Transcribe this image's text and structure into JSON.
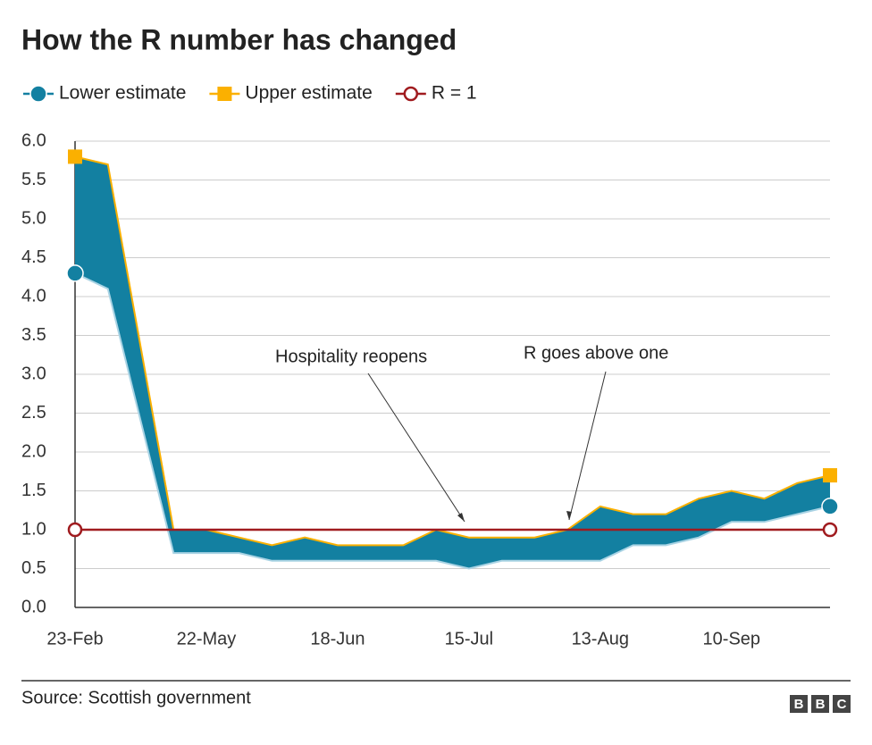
{
  "chart_data": {
    "type": "area-band",
    "title": "How the R number has changed",
    "categories": [
      "23-Feb",
      null,
      null,
      null,
      "22-May",
      null,
      null,
      null,
      "18-Jun",
      null,
      null,
      null,
      "15-Jul",
      null,
      null,
      null,
      "13-Aug",
      null,
      null,
      null,
      "10-Sep",
      null,
      null,
      null
    ],
    "series": [
      {
        "name": "Lower estimate",
        "color": "#1380a1",
        "marker": "circle",
        "values": [
          4.3,
          4.1,
          2.4,
          0.7,
          0.7,
          0.7,
          0.6,
          0.6,
          0.6,
          0.6,
          0.6,
          0.6,
          0.5,
          0.6,
          0.6,
          0.6,
          0.6,
          0.8,
          0.8,
          0.9,
          1.1,
          1.1,
          1.2,
          1.3
        ]
      },
      {
        "name": "Upper estimate",
        "color": "#fbb000",
        "marker": "square",
        "values": [
          5.8,
          5.7,
          3.35,
          1.0,
          1.0,
          0.9,
          0.8,
          0.9,
          0.8,
          0.8,
          0.8,
          1.0,
          0.9,
          0.9,
          0.9,
          1.0,
          1.3,
          1.2,
          1.2,
          1.4,
          1.5,
          1.4,
          1.6,
          1.7
        ]
      },
      {
        "name": "R = 1",
        "color": "#a01b1f",
        "marker": "hollow-circle",
        "values": [
          1,
          1,
          1,
          1,
          1,
          1,
          1,
          1,
          1,
          1,
          1,
          1,
          1,
          1,
          1,
          1,
          1,
          1,
          1,
          1,
          1,
          1,
          1,
          1
        ]
      }
    ],
    "band_color": "#1380a1",
    "ylim": [
      0,
      6
    ],
    "yticks": [
      {
        "value": 0,
        "label": "0.0"
      },
      0.5,
      {
        "value": 1,
        "label": "1.0"
      },
      1.5,
      {
        "value": 2,
        "label": "2.0"
      },
      2.5,
      {
        "value": 3,
        "label": "3.0"
      },
      3.5,
      {
        "value": 4,
        "label": "4.0"
      },
      4.5,
      {
        "value": 5,
        "label": "5.0"
      },
      5.5,
      {
        "value": 6,
        "label": "6.0"
      }
    ],
    "grid": true,
    "annotations": [
      "Hospitality reopens",
      "R goes above one"
    ],
    "source": "Source: Scottish government",
    "logo": [
      "B",
      "B",
      "C"
    ]
  }
}
